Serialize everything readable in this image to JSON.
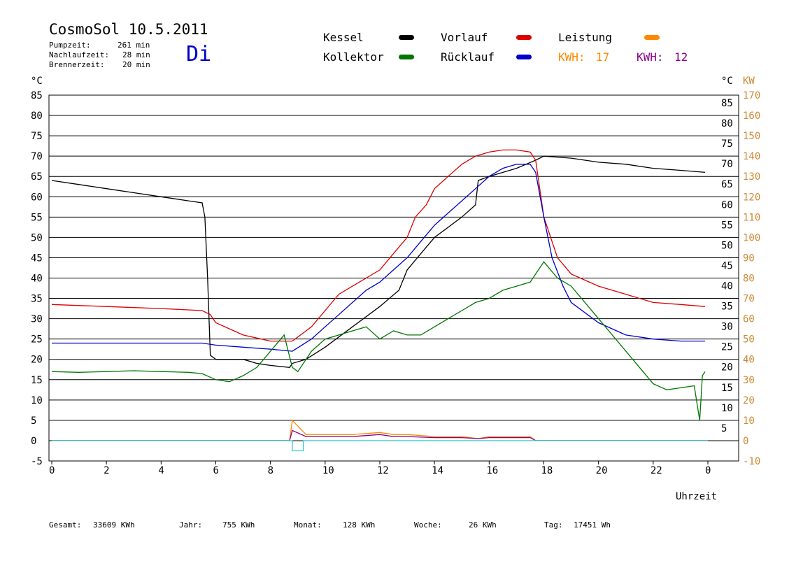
{
  "header": {
    "title": "CosmoSol 10.5.2011",
    "day": "Di",
    "pumpzeit": {
      "label": "Pumpzeit:",
      "value": "261 min"
    },
    "nachlaufzeit": {
      "label": "Nachlaufzeit:",
      "value": "28 min"
    },
    "brennerzeit": {
      "label": "Brennerzeit:",
      "value": "20 min"
    }
  },
  "legend": {
    "kessel": {
      "label": "Kessel",
      "color": "#000000"
    },
    "vorlauf": {
      "label": "Vorlauf",
      "color": "#dd0000"
    },
    "leistung": {
      "label": "Leistung",
      "color": "#ff8800"
    },
    "kollektor": {
      "label": "Kollektor",
      "color": "#007700"
    },
    "ruecklauf": {
      "label": "Rücklauf",
      "color": "#0000cc"
    },
    "kwh_orange": {
      "label": "KWH:",
      "value": "17",
      "color": "#ff8800"
    },
    "kwh_purple": {
      "label": "KWH:",
      "value": "12",
      "color": "#880088"
    }
  },
  "footer": {
    "gesamt": {
      "label": "Gesamt:",
      "value": "33609 KWh"
    },
    "jahr": {
      "label": "Jahr:",
      "value": "755 KWh"
    },
    "monat": {
      "label": "Monat:",
      "value": "128 KWh"
    },
    "woche": {
      "label": "Woche:",
      "value": "26 KWh"
    },
    "tag": {
      "label": "Tag:",
      "value": "17451 Wh"
    }
  },
  "chart_data": {
    "type": "line",
    "xlabel": "Uhrzeit",
    "ylabel_left": "°C",
    "ylabel_right": "°C",
    "ylabel_right2": "KW",
    "xlim": [
      0,
      24
    ],
    "ylim": [
      -5,
      85
    ],
    "ylim_kw": [
      -10,
      170
    ],
    "grid": true,
    "x_ticks": [
      "0",
      "2",
      "4",
      "6",
      "8",
      "10",
      "12",
      "14",
      "16",
      "18",
      "20",
      "22",
      "0"
    ],
    "y_ticks_left": [
      85,
      80,
      75,
      70,
      65,
      60,
      55,
      50,
      45,
      40,
      35,
      30,
      25,
      20,
      15,
      10,
      5,
      0,
      -5
    ],
    "y_ticks_right": [
      85,
      80,
      75,
      70,
      65,
      60,
      55,
      50,
      45,
      40,
      35,
      30,
      25,
      20,
      15,
      10,
      5
    ],
    "y_ticks_kw": [
      170,
      160,
      150,
      140,
      130,
      120,
      110,
      100,
      90,
      80,
      70,
      60,
      50,
      40,
      30,
      20,
      10,
      0,
      -10
    ],
    "series": [
      {
        "name": "Kessel",
        "color": "#000000",
        "x": [
          0,
          1,
          2,
          3,
          4,
          5,
          5.5,
          5.6,
          5.7,
          5.8,
          6,
          7,
          7.5,
          8,
          8.7,
          8.8,
          9.3,
          10,
          11,
          12,
          12.7,
          13,
          13.5,
          14,
          15,
          15.5,
          15.6,
          16,
          17,
          17.7,
          18,
          19,
          20,
          21,
          22,
          23,
          23.9
        ],
        "y": [
          64,
          63,
          62,
          61,
          60,
          59,
          58.5,
          55,
          40,
          21,
          20,
          20,
          19,
          18.5,
          18,
          19,
          20,
          23,
          28,
          33,
          37,
          42,
          46,
          50,
          55,
          58,
          64,
          65,
          67,
          69,
          70,
          69.5,
          68.5,
          68,
          67,
          66.5,
          66
        ]
      },
      {
        "name": "Vorlauf",
        "color": "#dd0000",
        "x": [
          0,
          2,
          4,
          5.5,
          5.8,
          6,
          7,
          8,
          8.8,
          9.5,
          10,
          10.5,
          11,
          11.5,
          12,
          12.5,
          13,
          13.3,
          13.7,
          14,
          14.5,
          15,
          15.5,
          16,
          16.5,
          17,
          17.5,
          17.7,
          18,
          18.5,
          19,
          20,
          21,
          22,
          23,
          23.9
        ],
        "y": [
          33.5,
          33,
          32.5,
          32,
          31,
          29,
          26,
          24.5,
          24.5,
          28,
          32,
          36,
          38,
          40,
          42,
          46,
          50,
          55,
          58,
          62,
          65,
          68,
          70,
          71,
          71.5,
          71.5,
          71,
          69,
          55,
          45,
          41,
          38,
          36,
          34,
          33.5,
          33
        ]
      },
      {
        "name": "Rücklauf",
        "color": "#0000cc",
        "x": [
          0,
          2,
          4,
          5.5,
          6,
          7,
          8,
          8.8,
          9.5,
          10,
          10.5,
          11,
          11.5,
          12,
          12.5,
          13,
          13.5,
          14,
          14.5,
          15,
          15.5,
          16,
          16.5,
          17,
          17.5,
          17.7,
          18,
          18.3,
          18.7,
          19,
          20,
          21,
          22,
          23,
          23.9
        ],
        "y": [
          24,
          24,
          24,
          24,
          23.5,
          23,
          22.5,
          22,
          25,
          28,
          31,
          34,
          37,
          39,
          42,
          45,
          49,
          53,
          56,
          59,
          62,
          65,
          67,
          68,
          68,
          66,
          55,
          45,
          38,
          34,
          29,
          26,
          25,
          24.5,
          24.5
        ]
      },
      {
        "name": "Kollektor",
        "color": "#007700",
        "x": [
          0,
          1,
          2,
          3,
          4,
          5,
          5.5,
          6,
          6.5,
          7,
          7.5,
          8,
          8.5,
          8.8,
          9,
          9.5,
          10,
          10.5,
          11,
          11.5,
          12,
          12.5,
          13,
          13.5,
          14,
          14.5,
          15,
          15.5,
          16,
          16.5,
          17,
          17.5,
          18,
          18.5,
          19,
          20,
          21,
          21.5,
          22,
          22.5,
          23,
          23.5,
          23.7,
          23.8,
          23.9
        ],
        "y": [
          17,
          16.8,
          17,
          17.2,
          17,
          16.8,
          16.5,
          15,
          14.5,
          16,
          18,
          22,
          26,
          18,
          17,
          22,
          25,
          26,
          27,
          28,
          25,
          27,
          26,
          26,
          28,
          30,
          32,
          34,
          35,
          37,
          38,
          39,
          44,
          40,
          38,
          30,
          22,
          18,
          14,
          12.5,
          13,
          13.5,
          5,
          16,
          17
        ]
      },
      {
        "name": "Leistung",
        "color": "#ff8800",
        "axis": "kw",
        "x": [
          0,
          8.7,
          8.8,
          9.3,
          10,
          11,
          12,
          12.5,
          13,
          14,
          15,
          15.6,
          16,
          17,
          17.5,
          17.7,
          18,
          24
        ],
        "y": [
          0,
          0,
          10,
          3,
          3,
          3,
          4,
          3,
          3,
          2,
          2,
          1,
          2,
          2,
          2,
          0,
          0,
          0
        ]
      },
      {
        "name": "KWH",
        "color": "#880088",
        "axis": "kw",
        "x": [
          0,
          8.7,
          8.8,
          9.3,
          10,
          11,
          12,
          12.5,
          13,
          14,
          15,
          15.6,
          16,
          17,
          17.5,
          17.7,
          18,
          24
        ],
        "y": [
          0,
          0,
          5,
          2,
          2,
          2,
          3,
          2,
          2,
          1.5,
          1.5,
          1,
          1.5,
          1.5,
          1.5,
          0,
          0,
          0
        ]
      },
      {
        "color": "#33cccc",
        "axis": "kw",
        "x": [
          0,
          8.8,
          8.8,
          9.2,
          9.2,
          24
        ],
        "y": [
          0,
          0,
          -5,
          -5,
          0,
          0
        ]
      }
    ]
  }
}
